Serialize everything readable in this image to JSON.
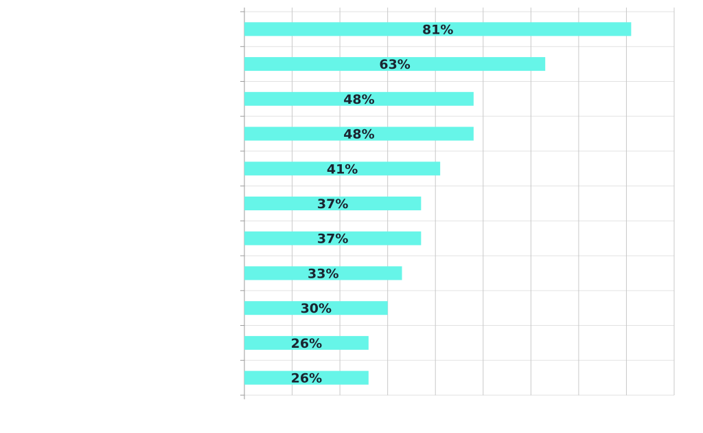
{
  "colors": {
    "bar": "#66f5e8",
    "label": "#1b2430",
    "grid": "#c8c8c8"
  },
  "chart_data": {
    "type": "bar",
    "orientation": "horizontal",
    "categories": [
      "",
      "",
      "",
      "",
      "",
      "",
      "",
      "",
      "",
      "",
      ""
    ],
    "values": [
      81,
      63,
      48,
      48,
      41,
      37,
      37,
      33,
      30,
      26,
      26
    ],
    "data_labels": [
      "81%",
      "63%",
      "48%",
      "48%",
      "41%",
      "37%",
      "37%",
      "33%",
      "30%",
      "26%",
      "26%"
    ],
    "unit": "%",
    "title": "",
    "xlabel": "",
    "ylabel": "",
    "xlim": [
      0,
      90
    ],
    "x_grid_step": 10,
    "grid": true,
    "legend": "none"
  }
}
